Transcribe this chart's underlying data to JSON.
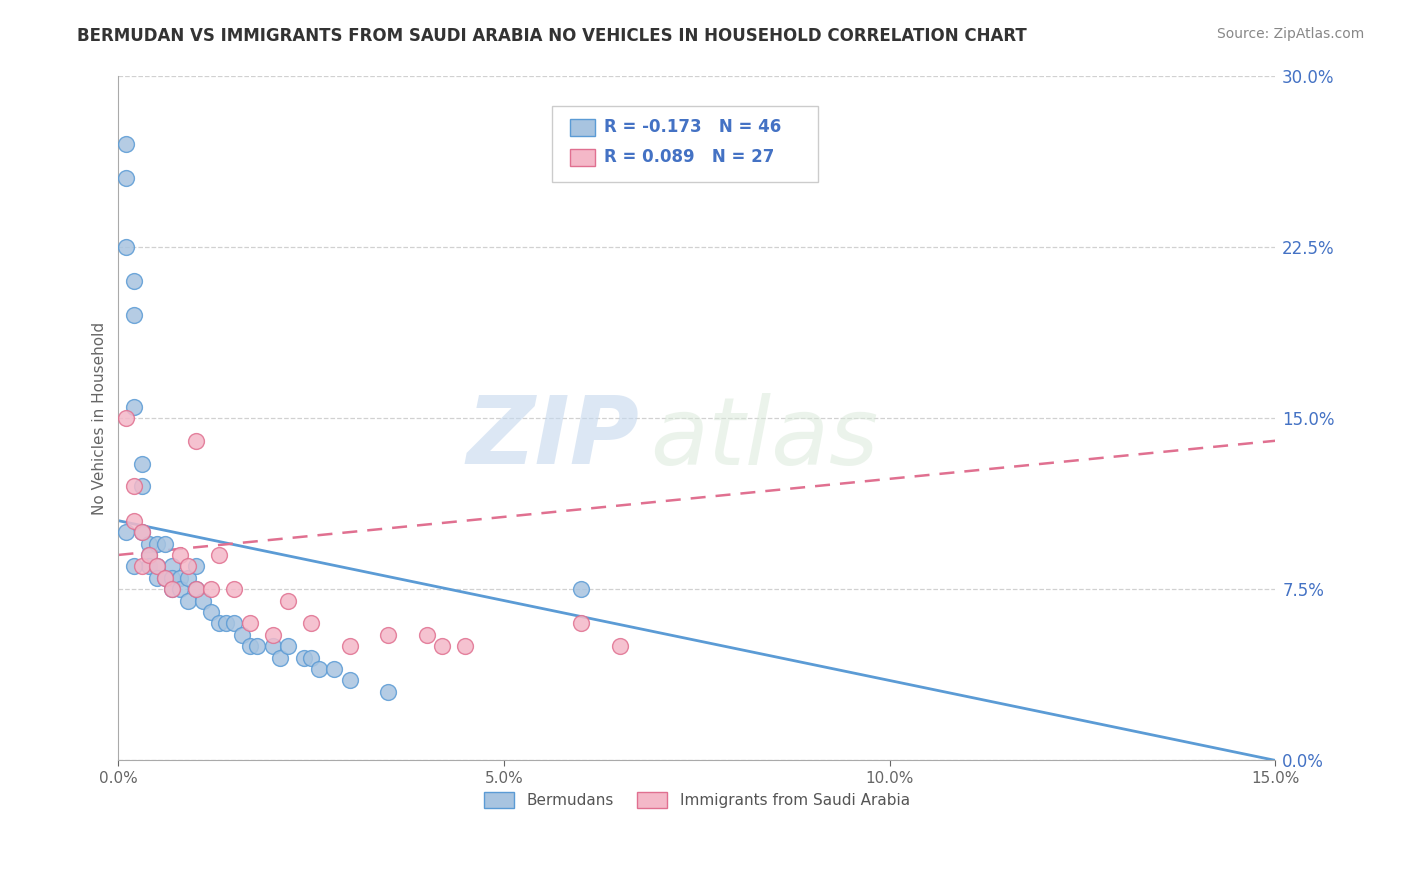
{
  "title": "BERMUDAN VS IMMIGRANTS FROM SAUDI ARABIA NO VEHICLES IN HOUSEHOLD CORRELATION CHART",
  "source_text": "Source: ZipAtlas.com",
  "ylabel": "No Vehicles in Household",
  "xlim": [
    0.0,
    0.15
  ],
  "ylim": [
    0.0,
    0.3
  ],
  "xticks": [
    0.0,
    0.05,
    0.1,
    0.15
  ],
  "xtick_labels": [
    "0.0%",
    "5.0%",
    "10.0%",
    "15.0%"
  ],
  "yticks_right": [
    0.0,
    0.075,
    0.15,
    0.225,
    0.3
  ],
  "ytick_labels_right": [
    "0.0%",
    "7.5%",
    "15.0%",
    "22.5%",
    "30.0%"
  ],
  "legend_labels": [
    "Bermudans",
    "Immigrants from Saudi Arabia"
  ],
  "r1": -0.173,
  "n1": 46,
  "r2": 0.089,
  "n2": 27,
  "color_blue": "#a8c4e0",
  "color_blue_edge": "#5b9bd5",
  "color_pink": "#f4b8c8",
  "color_pink_edge": "#e07090",
  "color_blue_text": "#4472c4",
  "watermark": "ZIPatlas",
  "background_color": "#ffffff",
  "blue_scatter_x": [
    0.001,
    0.001,
    0.001,
    0.002,
    0.002,
    0.002,
    0.003,
    0.003,
    0.003,
    0.004,
    0.004,
    0.004,
    0.005,
    0.005,
    0.005,
    0.006,
    0.006,
    0.007,
    0.007,
    0.007,
    0.008,
    0.008,
    0.009,
    0.009,
    0.01,
    0.01,
    0.011,
    0.012,
    0.013,
    0.014,
    0.015,
    0.016,
    0.017,
    0.018,
    0.02,
    0.021,
    0.022,
    0.024,
    0.025,
    0.026,
    0.028,
    0.03,
    0.035,
    0.06,
    0.001,
    0.002
  ],
  "blue_scatter_y": [
    0.27,
    0.255,
    0.225,
    0.21,
    0.195,
    0.155,
    0.13,
    0.12,
    0.1,
    0.095,
    0.09,
    0.085,
    0.095,
    0.085,
    0.08,
    0.095,
    0.08,
    0.085,
    0.08,
    0.075,
    0.08,
    0.075,
    0.08,
    0.07,
    0.085,
    0.075,
    0.07,
    0.065,
    0.06,
    0.06,
    0.06,
    0.055,
    0.05,
    0.05,
    0.05,
    0.045,
    0.05,
    0.045,
    0.045,
    0.04,
    0.04,
    0.035,
    0.03,
    0.075,
    0.1,
    0.085
  ],
  "pink_scatter_x": [
    0.001,
    0.002,
    0.002,
    0.003,
    0.003,
    0.004,
    0.005,
    0.006,
    0.007,
    0.008,
    0.009,
    0.01,
    0.01,
    0.012,
    0.013,
    0.015,
    0.017,
    0.02,
    0.022,
    0.025,
    0.03,
    0.035,
    0.04,
    0.042,
    0.045,
    0.06,
    0.065
  ],
  "pink_scatter_y": [
    0.15,
    0.12,
    0.105,
    0.085,
    0.1,
    0.09,
    0.085,
    0.08,
    0.075,
    0.09,
    0.085,
    0.075,
    0.14,
    0.075,
    0.09,
    0.075,
    0.06,
    0.055,
    0.07,
    0.06,
    0.05,
    0.055,
    0.055,
    0.05,
    0.05,
    0.06,
    0.05
  ],
  "blue_line_x": [
    0.0,
    0.15
  ],
  "blue_line_y": [
    0.105,
    0.0
  ],
  "pink_line_x": [
    0.0,
    0.15
  ],
  "pink_line_y": [
    0.09,
    0.14
  ]
}
